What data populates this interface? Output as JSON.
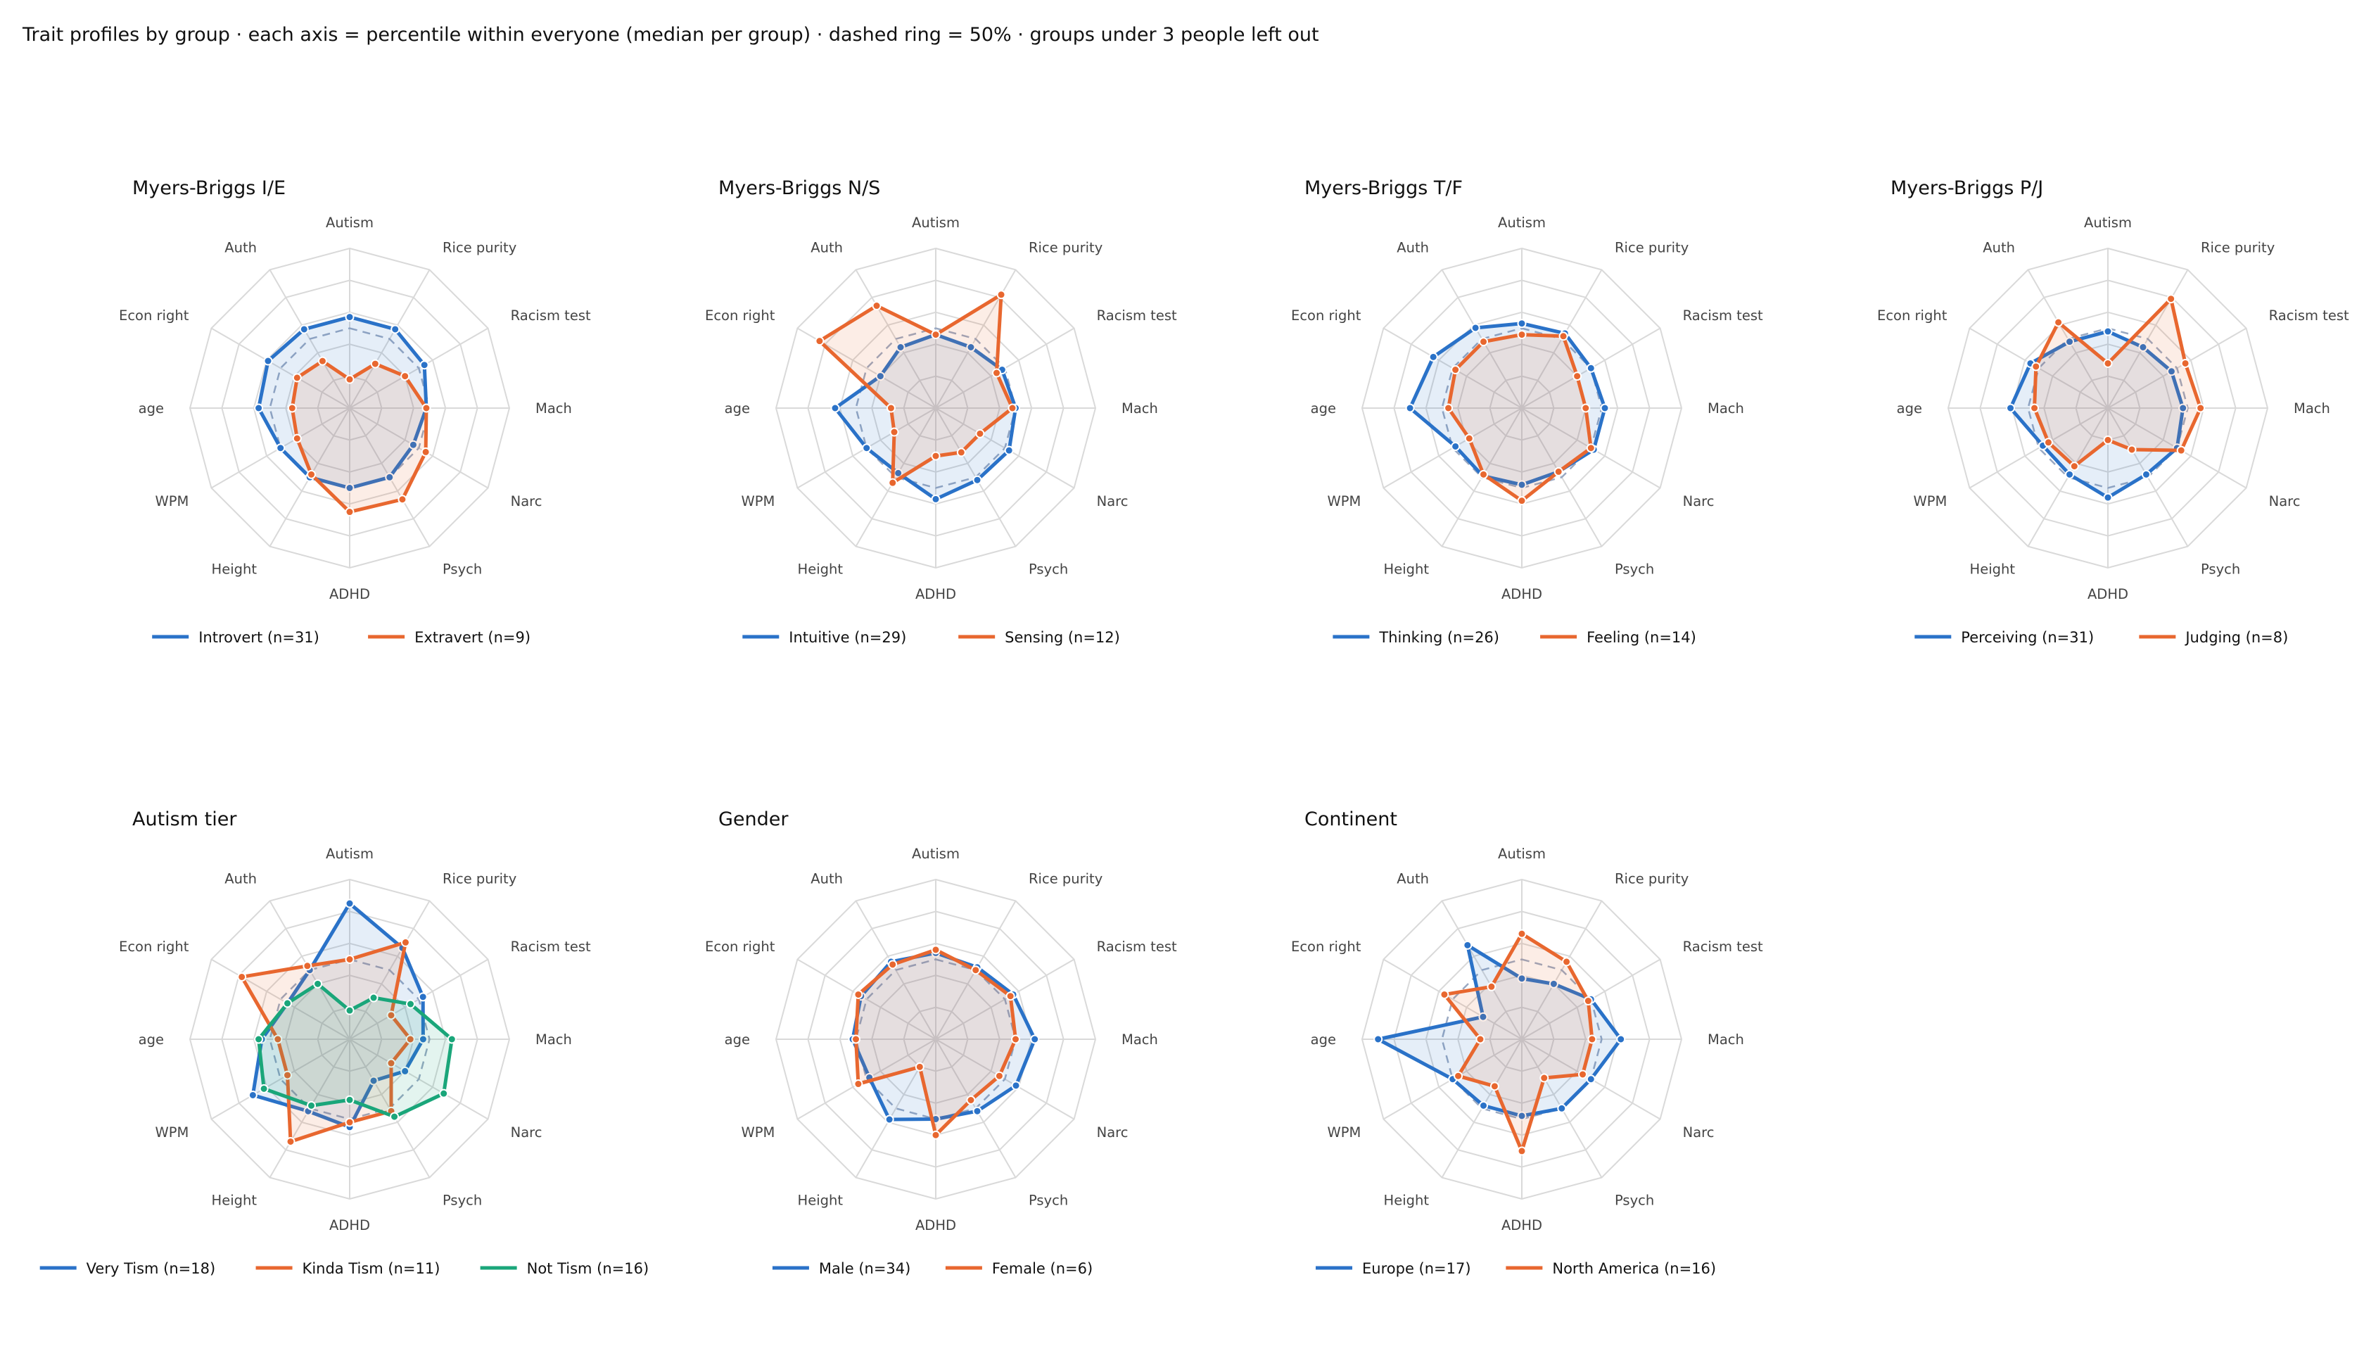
{
  "title": "Trait profiles by group · each axis = percentile within everyone (median per group) · dashed ring = 50% · groups under 3 people left out",
  "axes": [
    "Autism",
    "Rice purity",
    "Racism test",
    "Mach",
    "Narc",
    "Psych",
    "ADHD",
    "Height",
    "WPM",
    "age",
    "Econ right",
    "Auth"
  ],
  "colors": {
    "blue": "#2a72c8",
    "orange": "#e8672f",
    "green": "#1aa67a",
    "grid": "#d9d9d9",
    "reference": "#9aa9c2"
  },
  "chart_data": [
    {
      "type": "radar",
      "title": "Myers-Briggs I/E",
      "range": [
        0,
        100
      ],
      "reference_ring": 50,
      "series": [
        {
          "name": "Introvert (n=31)",
          "color": "#2a72c8",
          "values": [
            57,
            57,
            54,
            48,
            46,
            50,
            50,
            50,
            50,
            57,
            59,
            57
          ]
        },
        {
          "name": "Extravert (n=9)",
          "color": "#e8672f",
          "values": [
            18,
            32,
            40,
            48,
            55,
            66,
            65,
            48,
            38,
            36,
            38,
            34
          ]
        }
      ]
    },
    {
      "type": "radar",
      "title": "Myers-Briggs N/S",
      "range": [
        0,
        100
      ],
      "reference_ring": 50,
      "series": [
        {
          "name": "Intuitive (n=29)",
          "color": "#2a72c8",
          "values": [
            46,
            44,
            48,
            50,
            53,
            52,
            57,
            47,
            50,
            63,
            40,
            44
          ]
        },
        {
          "name": "Sensing (n=12)",
          "color": "#e8672f",
          "values": [
            46,
            82,
            44,
            48,
            32,
            32,
            30,
            54,
            30,
            28,
            84,
            74
          ]
        }
      ]
    },
    {
      "type": "radar",
      "title": "Myers-Briggs T/F",
      "range": [
        0,
        100
      ],
      "reference_ring": 50,
      "series": [
        {
          "name": "Thinking (n=26)",
          "color": "#2a72c8",
          "values": [
            53,
            54,
            50,
            52,
            52,
            46,
            48,
            49,
            48,
            70,
            64,
            58
          ]
        },
        {
          "name": "Feeling (n=14)",
          "color": "#e8672f",
          "values": [
            46,
            52,
            40,
            40,
            50,
            46,
            58,
            48,
            38,
            46,
            48,
            48
          ]
        }
      ]
    },
    {
      "type": "radar",
      "title": "Myers-Briggs P/J",
      "range": [
        0,
        100
      ],
      "reference_ring": 50,
      "series": [
        {
          "name": "Perceiving (n=31)",
          "color": "#2a72c8",
          "values": [
            48,
            44,
            46,
            47,
            50,
            48,
            56,
            48,
            47,
            61,
            56,
            48
          ]
        },
        {
          "name": "Judging (n=8)",
          "color": "#e8672f",
          "values": [
            28,
            79,
            56,
            58,
            53,
            30,
            20,
            42,
            43,
            46,
            52,
            62
          ]
        }
      ]
    },
    {
      "type": "radar",
      "title": "Autism tier",
      "range": [
        0,
        100
      ],
      "reference_ring": 50,
      "series": [
        {
          "name": "Very Tism (n=18)",
          "color": "#2a72c8",
          "values": [
            85,
            66,
            53,
            46,
            40,
            30,
            55,
            52,
            70,
            55,
            45,
            50
          ]
        },
        {
          "name": "Kinda Tism (n=11)",
          "color": "#e8672f",
          "values": [
            50,
            70,
            30,
            38,
            30,
            52,
            52,
            74,
            45,
            45,
            78,
            53
          ]
        },
        {
          "name": "Not Tism (n=16)",
          "color": "#1aa67a",
          "values": [
            18,
            30,
            44,
            64,
            68,
            56,
            38,
            48,
            62,
            57,
            45,
            40
          ]
        }
      ]
    },
    {
      "type": "radar",
      "title": "Gender",
      "range": [
        0,
        100
      ],
      "reference_ring": 50,
      "series": [
        {
          "name": "Male (n=34)",
          "color": "#2a72c8",
          "values": [
            54,
            52,
            56,
            62,
            58,
            52,
            50,
            58,
            48,
            52,
            54,
            56
          ]
        },
        {
          "name": "Female (n=6)",
          "color": "#e8672f",
          "values": [
            56,
            50,
            54,
            50,
            46,
            44,
            60,
            20,
            56,
            50,
            56,
            54
          ]
        }
      ]
    },
    {
      "type": "radar",
      "title": "Continent",
      "range": [
        0,
        100
      ],
      "reference_ring": 50,
      "series": [
        {
          "name": "Europe (n=17)",
          "color": "#2a72c8",
          "values": [
            38,
            40,
            50,
            62,
            50,
            50,
            48,
            48,
            50,
            90,
            28,
            68
          ]
        },
        {
          "name": "North America (n=16)",
          "color": "#e8672f",
          "values": [
            66,
            56,
            48,
            44,
            44,
            28,
            70,
            34,
            46,
            26,
            56,
            38
          ]
        }
      ]
    }
  ]
}
